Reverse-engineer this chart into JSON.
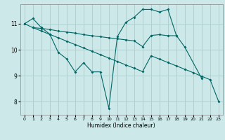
{
  "xlabel": "Humidex (Indice chaleur)",
  "background_color": "#cce8e8",
  "grid_color": "#aacccc",
  "line_color": "#006666",
  "line1_x": [
    0,
    1,
    2,
    3,
    4,
    5,
    6,
    7,
    8,
    9,
    10,
    11,
    12,
    13,
    14,
    15,
    16,
    17,
    18,
    19,
    20,
    21
  ],
  "line1_y": [
    11.0,
    11.2,
    10.85,
    10.6,
    9.9,
    9.65,
    9.15,
    9.5,
    9.15,
    9.15,
    7.75,
    10.5,
    11.05,
    11.25,
    11.55,
    11.55,
    11.45,
    11.55,
    10.55,
    10.1,
    null,
    8.9
  ],
  "line2_x": [
    1,
    2,
    3,
    4,
    5,
    6,
    7,
    8,
    9,
    10,
    11,
    12,
    13,
    14,
    15,
    16,
    17,
    18
  ],
  "line2_y": [
    10.85,
    10.82,
    10.78,
    10.72,
    10.68,
    10.64,
    10.58,
    10.54,
    10.5,
    10.46,
    10.42,
    10.38,
    10.34,
    10.12,
    10.55,
    10.58,
    10.54,
    10.54
  ],
  "line3_x": [
    0,
    1,
    2,
    3,
    4,
    5,
    6,
    7,
    8,
    9,
    10,
    11,
    12,
    13,
    14,
    15,
    16,
    17,
    18,
    19,
    20,
    21,
    22,
    23
  ],
  "line3_y": [
    11.0,
    10.85,
    10.72,
    10.59,
    10.46,
    10.33,
    10.2,
    10.07,
    9.94,
    9.81,
    9.68,
    9.55,
    9.42,
    9.29,
    9.16,
    9.77,
    9.64,
    9.51,
    9.38,
    9.25,
    9.12,
    8.98,
    8.85,
    8.02
  ],
  "xlim": [
    -0.5,
    23.5
  ],
  "ylim": [
    7.5,
    11.75
  ],
  "yticks": [
    8,
    9,
    10,
    11
  ],
  "xticks": [
    0,
    1,
    2,
    3,
    4,
    5,
    6,
    7,
    8,
    9,
    10,
    11,
    12,
    13,
    14,
    15,
    16,
    17,
    18,
    19,
    20,
    21,
    22,
    23
  ]
}
